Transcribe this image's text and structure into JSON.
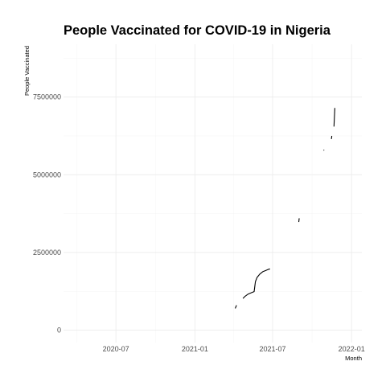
{
  "chart_data": {
    "type": "line",
    "title": "People Vaccinated for COVID-19 in Nigeria",
    "xlabel": "Month",
    "ylabel": "People Vaccinated",
    "x_type": "date",
    "xlim": [
      "2020-03-01",
      "2022-01-25"
    ],
    "ylim": [
      -400000,
      9200000
    ],
    "x_ticks": [
      {
        "value": "2020-07-01",
        "label": "2020-07"
      },
      {
        "value": "2021-01-01",
        "label": "2021-01"
      },
      {
        "value": "2021-07-01",
        "label": "2021-07"
      },
      {
        "value": "2022-01-01",
        "label": "2022-01"
      }
    ],
    "x_minor_ticks": [
      "2020-04-01",
      "2020-10-01",
      "2021-04-01",
      "2021-10-01"
    ],
    "y_ticks": [
      {
        "value": 0,
        "label": "0"
      },
      {
        "value": 2500000,
        "label": "2500000"
      },
      {
        "value": 5000000,
        "label": "5000000"
      },
      {
        "value": 7500000,
        "label": "7500000"
      }
    ],
    "y_minor_ticks": [
      1250000,
      3750000,
      6250000,
      8750000
    ],
    "grid": true,
    "legend": "none",
    "series": [
      {
        "color": "#000000",
        "segments": [
          [
            [
              "2021-04-05",
              700000
            ],
            [
              "2021-04-08",
              800000
            ]
          ],
          [
            [
              "2021-04-23",
              1020000
            ],
            [
              "2021-04-28",
              1090000
            ],
            [
              "2021-05-05",
              1160000
            ],
            [
              "2021-05-12",
              1200000
            ],
            [
              "2021-05-19",
              1240000
            ],
            [
              "2021-05-22",
              1560000
            ],
            [
              "2021-05-26",
              1700000
            ],
            [
              "2021-06-01",
              1800000
            ],
            [
              "2021-06-08",
              1880000
            ],
            [
              "2021-06-15",
              1920000
            ],
            [
              "2021-06-22",
              1960000
            ],
            [
              "2021-06-25",
              1970000
            ]
          ],
          [
            [
              "2021-08-31",
              3480000
            ],
            [
              "2021-09-01",
              3600000
            ]
          ],
          [
            [
              "2021-10-28",
              5780000
            ],
            [
              "2021-10-29",
              5800000
            ]
          ],
          [
            [
              "2021-11-15",
              6150000
            ],
            [
              "2021-11-16",
              6250000
            ]
          ],
          [
            [
              "2021-11-21",
              6550000
            ],
            [
              "2021-11-23",
              7150000
            ]
          ]
        ]
      }
    ]
  }
}
